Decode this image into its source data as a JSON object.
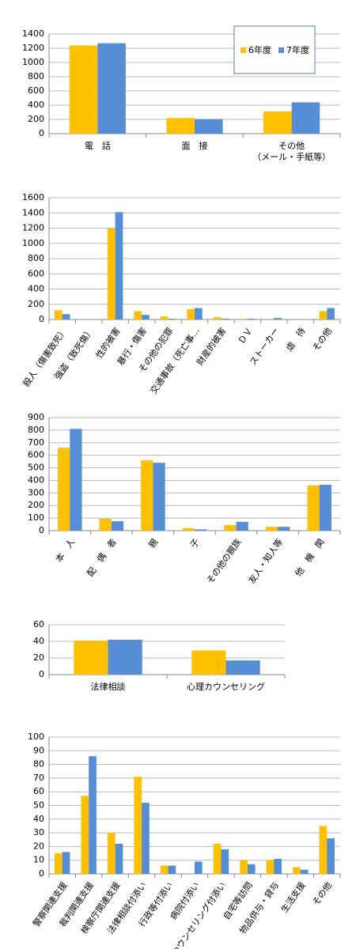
{
  "chart_data": [
    {
      "type": "bar",
      "categories": [
        "電　話",
        "面　接",
        "その他\n（メール・手紙等）"
      ],
      "series": [
        {
          "name": "6年度",
          "color": "#ffc000",
          "values": [
            1240,
            220,
            310
          ]
        },
        {
          "name": "7年度",
          "color": "#558ed5",
          "values": [
            1270,
            205,
            440
          ]
        }
      ],
      "ylim": [
        0,
        1400
      ],
      "yticks": [
        0,
        200,
        400,
        600,
        800,
        1000,
        1200,
        1400
      ],
      "grid": true,
      "legend": "upper right"
    },
    {
      "type": "bar",
      "categories": [
        "殺人（傷害致死）",
        "強盗（致死傷）",
        "性的被害",
        "暴行・傷害",
        "その他の犯罪",
        "交通事故（死亡事…",
        "財産的被害",
        "ＤＶ",
        "ストーカー",
        "虐　待",
        "その他"
      ],
      "series": [
        {
          "name": "6年度",
          "color": "#ffc000",
          "values": [
            120,
            0,
            1200,
            110,
            40,
            135,
            30,
            10,
            0,
            0,
            110
          ]
        },
        {
          "name": "7年度",
          "color": "#558ed5",
          "values": [
            70,
            0,
            1410,
            60,
            10,
            150,
            10,
            10,
            20,
            0,
            150
          ]
        }
      ],
      "ylim": [
        0,
        1600
      ],
      "yticks": [
        0,
        200,
        400,
        600,
        800,
        1000,
        1200,
        1400,
        1600
      ],
      "grid": true
    },
    {
      "type": "bar",
      "categories": [
        "本　人",
        "配　偶　者",
        "親",
        "子",
        "その他の親族",
        "友人・知人等",
        "他　機　関"
      ],
      "series": [
        {
          "name": "6年度",
          "color": "#ffc000",
          "values": [
            660,
            95,
            560,
            20,
            45,
            30,
            360
          ]
        },
        {
          "name": "7年度",
          "color": "#558ed5",
          "values": [
            810,
            75,
            540,
            10,
            70,
            30,
            365
          ]
        }
      ],
      "ylim": [
        0,
        900
      ],
      "yticks": [
        0,
        100,
        200,
        300,
        400,
        500,
        600,
        700,
        800,
        900
      ],
      "grid": true
    },
    {
      "type": "bar",
      "categories": [
        "法律相談",
        "心理カウンセリング"
      ],
      "series": [
        {
          "name": "6年度",
          "color": "#ffc000",
          "values": [
            41,
            29
          ]
        },
        {
          "name": "7年度",
          "color": "#558ed5",
          "values": [
            42,
            17
          ]
        }
      ],
      "ylim": [
        0,
        60
      ],
      "yticks": [
        0,
        20,
        40,
        60
      ],
      "grid": true
    },
    {
      "type": "bar",
      "categories": [
        "警察関連支援",
        "裁判関連支援",
        "検察庁関連支援",
        "法律相談付添い",
        "行政等付添い",
        "病院付添い",
        "カウンセリング付添い",
        "自宅等訪問",
        "物品供与・貸与",
        "生活支援",
        "その他"
      ],
      "series": [
        {
          "name": "6年度",
          "color": "#ffc000",
          "values": [
            15,
            57,
            30,
            71,
            6,
            0,
            22,
            10,
            10,
            5,
            35
          ]
        },
        {
          "name": "7年度",
          "color": "#558ed5",
          "values": [
            16,
            86,
            22,
            52,
            6,
            9,
            18,
            7,
            11,
            3,
            26
          ]
        }
      ],
      "ylim": [
        0,
        100
      ],
      "yticks": [
        0,
        10,
        20,
        30,
        40,
        50,
        60,
        70,
        80,
        90,
        100
      ],
      "grid": true
    }
  ]
}
